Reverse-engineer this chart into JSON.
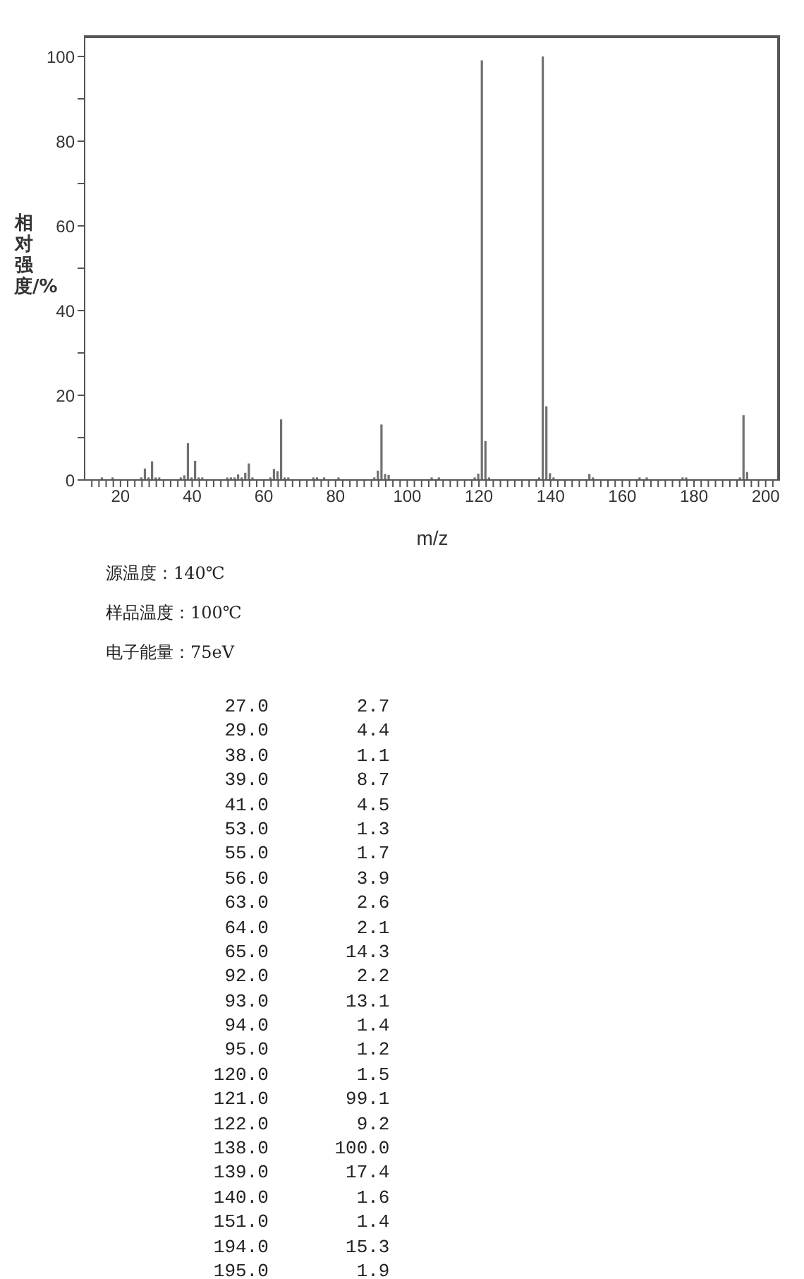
{
  "chart_data": {
    "type": "bar",
    "xlabel": "m/z",
    "ylabel": "相对强度/%",
    "annotations": [
      "源温度：140℃",
      "样品温度：100℃",
      "电子能量：75eV",
      "27.0 2.7",
      "29.0 4.4",
      "38.0 1.1",
      "39.0 8.7",
      "41.0 4.5",
      "53.0 1.3",
      "55.0 1.7",
      "56.0 3.9",
      "63.0 2.6",
      "64.0 2.1",
      "65.0 14.3",
      "92.0 2.2",
      "93.0 13.1",
      "94.0 1.4",
      "95.0 1.2",
      "120.0 1.5",
      "121.0 99.1",
      "122.0 9.2",
      "138.0 100.0",
      "139.0 17.4",
      "140.0 1.6",
      "151.0 1.4",
      "194.0 15.3",
      "195.0 1.9"
    ],
    "x": [
      15,
      18,
      26,
      27,
      28,
      29,
      30,
      31,
      37,
      38,
      39,
      40,
      41,
      42,
      43,
      50,
      51,
      52,
      53,
      54,
      55,
      56,
      57,
      62,
      63,
      64,
      65,
      66,
      67,
      74,
      75,
      77,
      81,
      91,
      92,
      93,
      94,
      95,
      107,
      109,
      119,
      120,
      121,
      122,
      123,
      137,
      138,
      139,
      140,
      141,
      151,
      152,
      165,
      167,
      177,
      178,
      193,
      194,
      195
    ],
    "values": [
      0.6,
      0.6,
      0.6,
      2.7,
      0.6,
      4.4,
      0.6,
      0.6,
      0.6,
      1.1,
      8.7,
      0.6,
      4.5,
      0.6,
      0.6,
      0.6,
      0.6,
      0.6,
      1.3,
      0.6,
      1.7,
      3.9,
      0.6,
      0.6,
      2.6,
      2.1,
      14.3,
      0.6,
      0.6,
      0.6,
      0.6,
      0.6,
      0.6,
      0.6,
      2.2,
      13.1,
      1.4,
      1.2,
      0.6,
      0.6,
      0.6,
      1.5,
      99.1,
      9.2,
      0.6,
      0.6,
      100,
      17.4,
      1.6,
      0.6,
      1.4,
      0.6,
      0.6,
      0.6,
      0.6,
      0.6,
      0.6,
      15.3,
      1.9
    ],
    "color": "#707070",
    "xlim": [
      10,
      204
    ],
    "xticks": [
      {
        "value": 12,
        "label": null
      },
      {
        "value": 14,
        "label": null
      },
      {
        "value": 16,
        "label": null
      },
      {
        "value": 18,
        "label": null
      },
      20,
      {
        "value": 22,
        "label": null
      },
      {
        "value": 24,
        "label": null
      },
      {
        "value": 26,
        "label": null
      },
      {
        "value": 28,
        "label": null
      },
      {
        "value": 30,
        "label": null
      },
      {
        "value": 32,
        "label": null
      },
      {
        "value": 34,
        "label": null
      },
      {
        "value": 36,
        "label": null
      },
      {
        "value": 38,
        "label": null
      },
      40,
      {
        "value": 42,
        "label": null
      },
      {
        "value": 44,
        "label": null
      },
      {
        "value": 46,
        "label": null
      },
      {
        "value": 48,
        "label": null
      },
      {
        "value": 50,
        "label": null
      },
      {
        "value": 52,
        "label": null
      },
      {
        "value": 54,
        "label": null
      },
      {
        "value": 56,
        "label": null
      },
      {
        "value": 58,
        "label": null
      },
      60,
      {
        "value": 62,
        "label": null
      },
      {
        "value": 64,
        "label": null
      },
      {
        "value": 66,
        "label": null
      },
      {
        "value": 68,
        "label": null
      },
      {
        "value": 70,
        "label": null
      },
      {
        "value": 72,
        "label": null
      },
      {
        "value": 74,
        "label": null
      },
      {
        "value": 76,
        "label": null
      },
      {
        "value": 78,
        "label": null
      },
      80,
      {
        "value": 82,
        "label": null
      },
      {
        "value": 84,
        "label": null
      },
      {
        "value": 86,
        "label": null
      },
      {
        "value": 88,
        "label": null
      },
      {
        "value": 90,
        "label": null
      },
      {
        "value": 92,
        "label": null
      },
      {
        "value": 94,
        "label": null
      },
      {
        "value": 96,
        "label": null
      },
      {
        "value": 98,
        "label": null
      },
      100,
      {
        "value": 102,
        "label": null
      },
      {
        "value": 104,
        "label": null
      },
      {
        "value": 106,
        "label": null
      },
      {
        "value": 108,
        "label": null
      },
      {
        "value": 110,
        "label": null
      },
      {
        "value": 112,
        "label": null
      },
      {
        "value": 114,
        "label": null
      },
      {
        "value": 116,
        "label": null
      },
      {
        "value": 118,
        "label": null
      },
      120,
      {
        "value": 122,
        "label": null
      },
      {
        "value": 124,
        "label": null
      },
      {
        "value": 126,
        "label": null
      },
      {
        "value": 128,
        "label": null
      },
      {
        "value": 130,
        "label": null
      },
      {
        "value": 132,
        "label": null
      },
      {
        "value": 134,
        "label": null
      },
      {
        "value": 136,
        "label": null
      },
      {
        "value": 138,
        "label": null
      },
      140,
      {
        "value": 142,
        "label": null
      },
      {
        "value": 144,
        "label": null
      },
      {
        "value": 146,
        "label": null
      },
      {
        "value": 148,
        "label": null
      },
      {
        "value": 150,
        "label": null
      },
      {
        "value": 152,
        "label": null
      },
      {
        "value": 154,
        "label": null
      },
      {
        "value": 156,
        "label": null
      },
      {
        "value": 158,
        "label": null
      },
      160,
      {
        "value": 162,
        "label": null
      },
      {
        "value": 164,
        "label": null
      },
      {
        "value": 166,
        "label": null
      },
      {
        "value": 168,
        "label": null
      },
      {
        "value": 170,
        "label": null
      },
      {
        "value": 172,
        "label": null
      },
      {
        "value": 174,
        "label": null
      },
      {
        "value": 176,
        "label": null
      },
      {
        "value": 178,
        "label": null
      },
      180,
      {
        "value": 182,
        "label": null
      },
      {
        "value": 184,
        "label": null
      },
      {
        "value": 186,
        "label": null
      },
      {
        "value": 188,
        "label": null
      },
      {
        "value": 190,
        "label": null
      },
      {
        "value": 192,
        "label": null
      },
      {
        "value": 194,
        "label": null
      },
      {
        "value": 196,
        "label": null
      },
      {
        "value": 198,
        "label": null
      },
      200,
      {
        "value": 202,
        "label": null
      }
    ],
    "ylim": [
      0,
      105
    ],
    "yticks": [
      0,
      {
        "value": 10,
        "label": null
      },
      20,
      {
        "value": 30,
        "label": null
      },
      40,
      {
        "value": 50,
        "label": null
      },
      60,
      {
        "value": 70,
        "label": null
      },
      80,
      {
        "value": 90,
        "label": null
      },
      100
    ]
  }
}
